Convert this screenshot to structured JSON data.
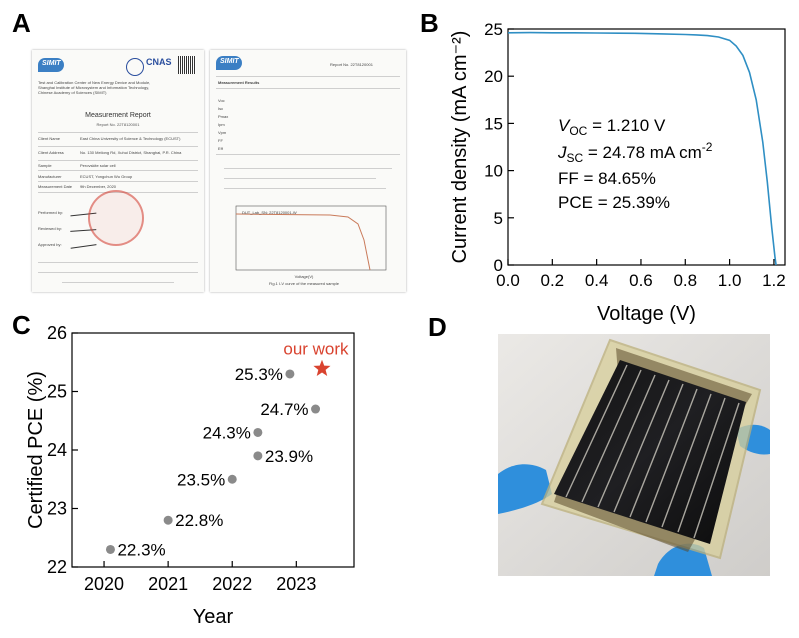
{
  "panels": {
    "a": {
      "letter": "A",
      "report_title": "Measurement Report",
      "report_no": "Report No. 22T8120001",
      "header_lines": [
        "Test and Calibration Center of New Energy Device and Module,",
        "Shanghai Institute of Microsystem and Information Technology,",
        "Chinese Academy of Sciences (SIMIT)"
      ],
      "fields": [
        {
          "label": "Client Name",
          "value": "East China University of Science & Technology (ECUST)"
        },
        {
          "label": "Client Address",
          "value": "No. 130 Meilong Rd, Xuhui District, Shanghai, P.R. China"
        },
        {
          "label": "Sample",
          "value": "Perovskite solar cell"
        },
        {
          "label": "Manufacturer",
          "value": "ECUST, Yongchun Wu Group"
        },
        {
          "label": "Measurement Date",
          "value": "9th December, 2020"
        }
      ],
      "sign_rows": [
        "Performed by:",
        "Reviewed by:",
        "Approved by:"
      ],
      "page2_title": "Measurement Results",
      "page2_report_no": "Report No. 22T8120001",
      "page2_table_rows": [
        "Voc",
        "Isc",
        "Pmax",
        "Ipm",
        "Vpm",
        "FF",
        "Eff"
      ],
      "page2_plot_label": "DUT_Lab_SN: 22T8120001-W",
      "page2_plot_xlabel": "Voltage(V)",
      "page2_caption": "Fig.1 I-V curve of the measured sample",
      "logo_text": "SIMIT",
      "seal_text": "CNAS"
    },
    "b": {
      "letter": "B",
      "annotations": [
        {
          "label": "V",
          "sub": "OC",
          "value": " = 1.210 V"
        },
        {
          "label": "J",
          "sub": "SC",
          "value": " = 24.78 mA cm",
          "sup": "-2"
        },
        {
          "label": "FF",
          "sub": "",
          "value": "  = 84.65%"
        },
        {
          "label": "PCE",
          "sub": "",
          "value": " = 25.39%"
        }
      ]
    },
    "c": {
      "letter": "C",
      "highlight_label": "our work"
    },
    "d": {
      "letter": "D"
    }
  },
  "chart_data": [
    {
      "type": "line",
      "title": "",
      "xlabel": "Voltage (V)",
      "ylabel": "Current density (mA cm⁻²)",
      "xlim": [
        0.0,
        1.25
      ],
      "ylim": [
        0,
        25
      ],
      "xticks": [
        "0.0",
        "0.2",
        "0.4",
        "0.6",
        "0.8",
        "1.0",
        "1.2"
      ],
      "yticks": [
        "0",
        "5",
        "10",
        "15",
        "20",
        "25"
      ],
      "series": [
        {
          "color": "#2f8fc4",
          "points": [
            [
              0.0,
              24.6
            ],
            [
              0.1,
              24.62
            ],
            [
              0.2,
              24.6
            ],
            [
              0.3,
              24.6
            ],
            [
              0.4,
              24.58
            ],
            [
              0.5,
              24.55
            ],
            [
              0.6,
              24.53
            ],
            [
              0.7,
              24.48
            ],
            [
              0.8,
              24.42
            ],
            [
              0.85,
              24.38
            ],
            [
              0.9,
              24.3
            ],
            [
              0.95,
              24.15
            ],
            [
              1.0,
              23.8
            ],
            [
              1.03,
              23.2
            ],
            [
              1.06,
              22.2
            ],
            [
              1.09,
              20.4
            ],
            [
              1.12,
              17.5
            ],
            [
              1.15,
              13.0
            ],
            [
              1.17,
              8.8
            ],
            [
              1.19,
              4.0
            ],
            [
              1.205,
              0.8
            ],
            [
              1.21,
              0.0
            ]
          ]
        }
      ]
    },
    {
      "type": "scatter",
      "title": "",
      "xlabel": "Year",
      "ylabel": "Certified PCE (%)",
      "xlim": [
        2019.5,
        2023.9
      ],
      "ylim": [
        22,
        26
      ],
      "xticks": [
        "2020",
        "2021",
        "2022",
        "2023"
      ],
      "yticks": [
        "22",
        "23",
        "24",
        "25",
        "26"
      ],
      "points": [
        {
          "x": 2020.1,
          "y": 22.3,
          "label": "22.3%"
        },
        {
          "x": 2021.0,
          "y": 22.8,
          "label": "22.8%"
        },
        {
          "x": 2022.0,
          "y": 23.5,
          "label": "23.5%"
        },
        {
          "x": 2022.4,
          "y": 23.9,
          "label": "23.9%"
        },
        {
          "x": 2022.4,
          "y": 24.3,
          "label": "24.3%"
        },
        {
          "x": 2023.3,
          "y": 24.7,
          "label": "24.7%"
        },
        {
          "x": 2022.9,
          "y": 25.3,
          "label": "25.3%"
        }
      ],
      "highlight": {
        "x": 2023.4,
        "y": 25.39,
        "label": "our work",
        "color": "#d9432f"
      },
      "point_color": "#8a8a8a"
    }
  ]
}
